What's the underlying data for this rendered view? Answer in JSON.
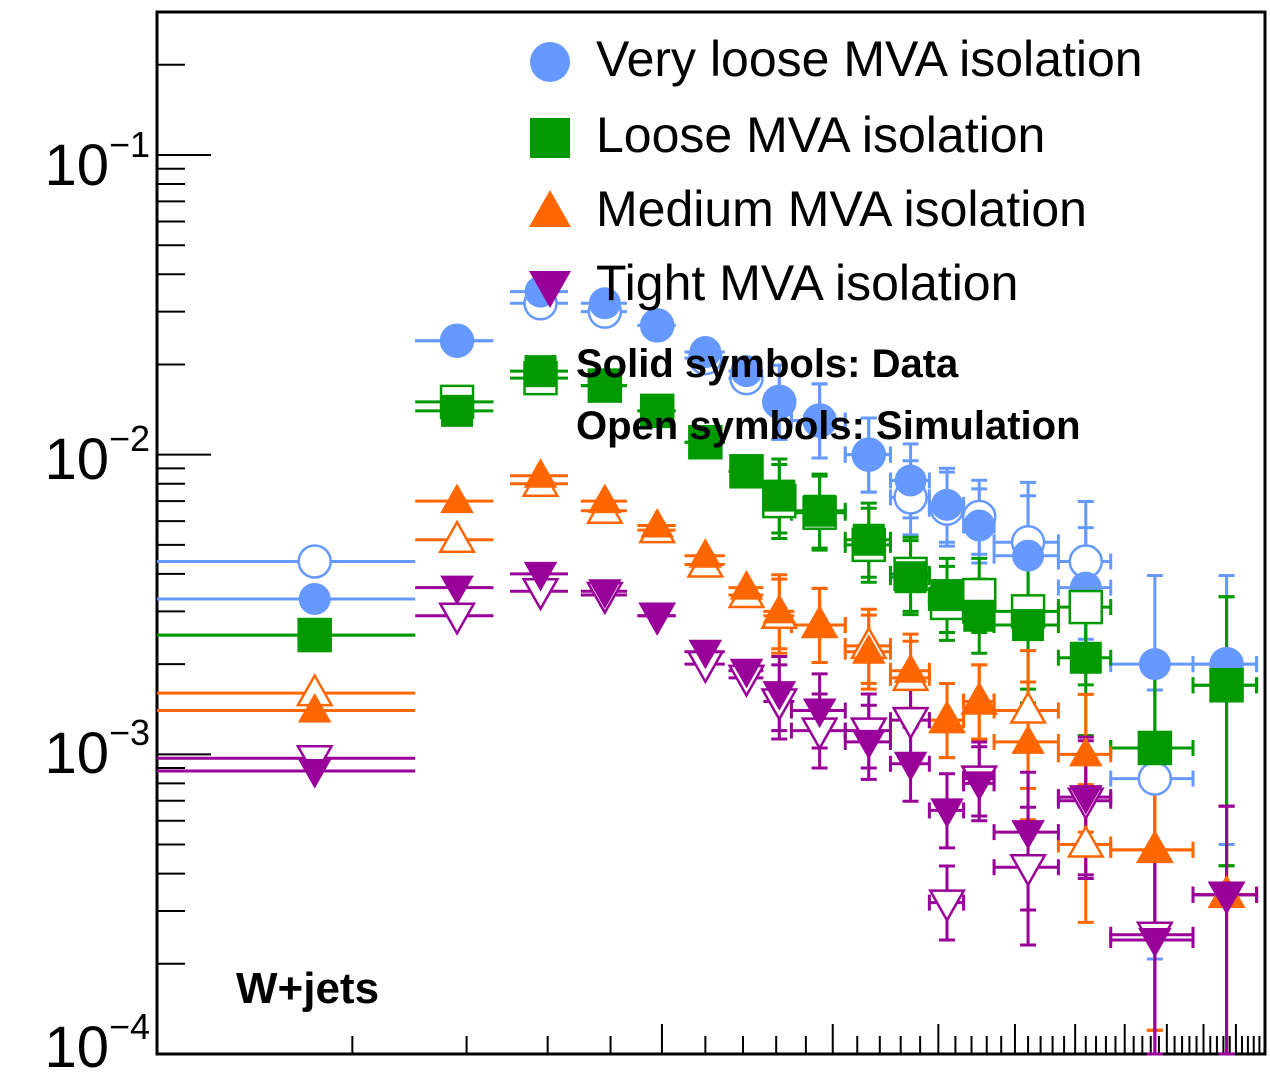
{
  "chart_data": {
    "type": "scatter",
    "y_scale": "log",
    "ylim": [
      0.0001,
      0.3
    ],
    "xlim": [
      0,
      500
    ],
    "y_tick_labels": [
      {
        "base": "10",
        "exp": "−1",
        "value": 0.1
      },
      {
        "base": "10",
        "exp": "−2",
        "value": 0.01
      },
      {
        "base": "10",
        "exp": "−3",
        "value": 0.001
      },
      {
        "base": "10",
        "exp": "−4",
        "value": 0.0001
      }
    ],
    "annotations": {
      "process": "W+jets",
      "solid_note": "Solid symbols: Data",
      "open_note": "Open symbols: Simulation"
    },
    "series": [
      {
        "name": "Very loose MVA isolation",
        "marker": "circle",
        "color": "#6699ff",
        "data": [
          {
            "x": 7.5,
            "xerr": 7.5,
            "y": 0.0033,
            "sim": 0.0044
          },
          {
            "x": 19,
            "xerr": 4,
            "y": 0.024,
            "sim": 0.024
          },
          {
            "x": 29,
            "xerr": 4,
            "y": 0.035,
            "sim": 0.032
          },
          {
            "x": 39,
            "xerr": 4,
            "y": 0.032,
            "sim": 0.03
          },
          {
            "x": 49,
            "xerr": 4,
            "y": 0.027,
            "sim": 0.027
          },
          {
            "x": 60,
            "xerr": 5,
            "y": 0.022,
            "sim": 0.021
          },
          {
            "x": 71,
            "xerr": 5,
            "y": 0.019,
            "sim": 0.018
          },
          {
            "x": 81,
            "xerr": 5,
            "y": 0.015,
            "sim": 0.015
          },
          {
            "x": 95,
            "xerr": 10,
            "y": 0.013,
            "sim": 0.013
          },
          {
            "x": 115,
            "xerr": 10,
            "y": 0.01,
            "sim": 0.01
          },
          {
            "x": 135,
            "xerr": 10,
            "y": 0.0082,
            "sim": 0.0072
          },
          {
            "x": 155,
            "xerr": 10,
            "y": 0.0068,
            "sim": 0.0066
          },
          {
            "x": 175,
            "xerr": 10,
            "y": 0.0058,
            "sim": 0.0062
          },
          {
            "x": 210,
            "xerr": 25,
            "y": 0.0046,
            "sim": 0.0051
          },
          {
            "x": 260,
            "xerr": 25,
            "y": 0.0036,
            "sim": 0.0044
          },
          {
            "x": 335,
            "xerr": 50,
            "y": 0.002,
            "sim": 0.00083
          },
          {
            "x": 435,
            "xerr": 50,
            "y": 0.002,
            "sim": 0.002
          }
        ]
      },
      {
        "name": "Loose MVA isolation",
        "marker": "square",
        "color": "#009900",
        "data": [
          {
            "x": 7.5,
            "xerr": 7.5,
            "y": 0.0025,
            "sim": 0.0025
          },
          {
            "x": 19,
            "xerr": 4,
            "y": 0.014,
            "sim": 0.015
          },
          {
            "x": 29,
            "xerr": 4,
            "y": 0.019,
            "sim": 0.018
          },
          {
            "x": 39,
            "xerr": 4,
            "y": 0.017,
            "sim": 0.017
          },
          {
            "x": 49,
            "xerr": 4,
            "y": 0.014,
            "sim": 0.014
          },
          {
            "x": 60,
            "xerr": 5,
            "y": 0.011,
            "sim": 0.011
          },
          {
            "x": 71,
            "xerr": 5,
            "y": 0.0088,
            "sim": 0.0088
          },
          {
            "x": 81,
            "xerr": 5,
            "y": 0.0073,
            "sim": 0.007
          },
          {
            "x": 95,
            "xerr": 10,
            "y": 0.0065,
            "sim": 0.0064
          },
          {
            "x": 115,
            "xerr": 10,
            "y": 0.0052,
            "sim": 0.005
          },
          {
            "x": 135,
            "xerr": 10,
            "y": 0.0039,
            "sim": 0.004
          },
          {
            "x": 155,
            "xerr": 10,
            "y": 0.0034,
            "sim": 0.0032
          },
          {
            "x": 175,
            "xerr": 10,
            "y": 0.0029,
            "sim": 0.0034
          },
          {
            "x": 210,
            "xerr": 25,
            "y": 0.0027,
            "sim": 0.003
          },
          {
            "x": 260,
            "xerr": 25,
            "y": 0.0021,
            "sim": 0.0031
          },
          {
            "x": 335,
            "xerr": 50,
            "y": 0.00105,
            "sim": 0.00105
          },
          {
            "x": 435,
            "xerr": 50,
            "y": 0.0017,
            "sim": 0.0017
          }
        ]
      },
      {
        "name": "Medium MVA isolation",
        "marker": "triangle-up",
        "color": "#ff6600",
        "data": [
          {
            "x": 7.5,
            "xerr": 7.5,
            "y": 0.0014,
            "sim": 0.0016
          },
          {
            "x": 19,
            "xerr": 4,
            "y": 0.007,
            "sim": 0.0052
          },
          {
            "x": 29,
            "xerr": 4,
            "y": 0.0085,
            "sim": 0.008
          },
          {
            "x": 39,
            "xerr": 4,
            "y": 0.007,
            "sim": 0.0065
          },
          {
            "x": 49,
            "xerr": 4,
            "y": 0.0058,
            "sim": 0.0056
          },
          {
            "x": 60,
            "xerr": 5,
            "y": 0.0046,
            "sim": 0.0043
          },
          {
            "x": 71,
            "xerr": 5,
            "y": 0.0036,
            "sim": 0.0034
          },
          {
            "x": 81,
            "xerr": 5,
            "y": 0.003,
            "sim": 0.0029
          },
          {
            "x": 95,
            "xerr": 10,
            "y": 0.0027,
            "sim": 0.0027
          },
          {
            "x": 115,
            "xerr": 10,
            "y": 0.0022,
            "sim": 0.0023
          },
          {
            "x": 135,
            "xerr": 10,
            "y": 0.0019,
            "sim": 0.0018
          },
          {
            "x": 155,
            "xerr": 10,
            "y": 0.0013,
            "sim": 0.0013
          },
          {
            "x": 175,
            "xerr": 10,
            "y": 0.0015,
            "sim": 0.0015
          },
          {
            "x": 210,
            "xerr": 25,
            "y": 0.0011,
            "sim": 0.0014
          },
          {
            "x": 260,
            "xerr": 25,
            "y": 0.001,
            "sim": 0.0005
          },
          {
            "x": 335,
            "xerr": 50,
            "y": 0.00048,
            "sim": 0.00048
          },
          {
            "x": 435,
            "xerr": 50,
            "y": 0.00034,
            "sim": 0.00034
          }
        ]
      },
      {
        "name": "Tight MVA isolation",
        "marker": "triangle-down",
        "color": "#990099",
        "data": [
          {
            "x": 7.5,
            "xerr": 7.5,
            "y": 0.00088,
            "sim": 0.00097
          },
          {
            "x": 19,
            "xerr": 4,
            "y": 0.0036,
            "sim": 0.0029
          },
          {
            "x": 29,
            "xerr": 4,
            "y": 0.004,
            "sim": 0.0035
          },
          {
            "x": 39,
            "xerr": 4,
            "y": 0.0035,
            "sim": 0.0034
          },
          {
            "x": 49,
            "xerr": 4,
            "y": 0.0029,
            "sim": 0.0029
          },
          {
            "x": 60,
            "xerr": 5,
            "y": 0.0022,
            "sim": 0.002
          },
          {
            "x": 71,
            "xerr": 5,
            "y": 0.0019,
            "sim": 0.0018
          },
          {
            "x": 81,
            "xerr": 5,
            "y": 0.0016,
            "sim": 0.0015
          },
          {
            "x": 95,
            "xerr": 10,
            "y": 0.0014,
            "sim": 0.0012
          },
          {
            "x": 115,
            "xerr": 10,
            "y": 0.0011,
            "sim": 0.0012
          },
          {
            "x": 135,
            "xerr": 10,
            "y": 0.00093,
            "sim": 0.0013
          },
          {
            "x": 155,
            "xerr": 10,
            "y": 0.00065,
            "sim": 0.00032
          },
          {
            "x": 175,
            "xerr": 10,
            "y": 0.0008,
            "sim": 0.00083
          },
          {
            "x": 210,
            "xerr": 25,
            "y": 0.00055,
            "sim": 0.00042
          },
          {
            "x": 260,
            "xerr": 25,
            "y": 0.00072,
            "sim": 0.0007
          },
          {
            "x": 335,
            "xerr": 50,
            "y": 0.00024,
            "sim": 0.00025
          },
          {
            "x": 435,
            "xerr": 50,
            "y": 0.00034,
            "sim": 0.00034
          }
        ]
      }
    ]
  }
}
